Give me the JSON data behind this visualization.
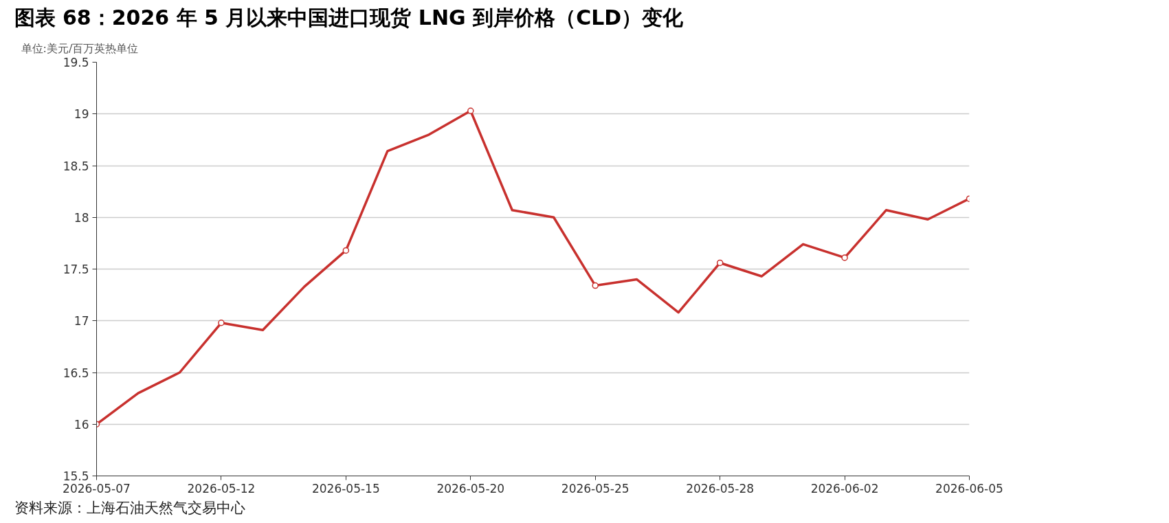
{
  "chart_data": {
    "type": "line",
    "title": "图表 68：2026 年 5 月以来中国进口现货 LNG 到岸价格（CLD）变化",
    "ylabel": "单位:美元/百万英热单位",
    "annotations": [
      "资料来源：上海石油天然气交易中心"
    ],
    "categories": [
      "2026-05-07",
      null,
      null,
      "2026-05-12",
      null,
      null,
      "2026-05-15",
      null,
      null,
      "2026-05-20",
      null,
      null,
      "2026-05-25",
      null,
      null,
      "2026-05-28",
      null,
      null,
      "2026-06-02",
      null,
      null,
      "2026-06-05"
    ],
    "series": [
      {
        "color": "#c8312e",
        "values": [
          16.0,
          16.3,
          16.5,
          16.98,
          16.91,
          17.33,
          17.68,
          18.64,
          18.8,
          19.03,
          18.07,
          18.0,
          17.34,
          17.4,
          17.08,
          17.56,
          17.43,
          17.74,
          17.61,
          18.07,
          17.98,
          18.18
        ]
      },
      {
        "type": "scatter",
        "marker": "circle",
        "color": "#c8312e",
        "values": [
          16.0,
          null,
          null,
          16.98,
          null,
          null,
          17.68,
          null,
          null,
          19.03,
          null,
          null,
          17.34,
          null,
          null,
          17.56,
          null,
          null,
          17.61,
          null,
          null,
          18.18
        ]
      }
    ],
    "ylim": [
      15.5,
      19.5
    ],
    "yticks": [
      15.5,
      16,
      16.5,
      17,
      17.5,
      18,
      18.5,
      19,
      19.5
    ],
    "grid": "y",
    "line_style": "solid"
  }
}
